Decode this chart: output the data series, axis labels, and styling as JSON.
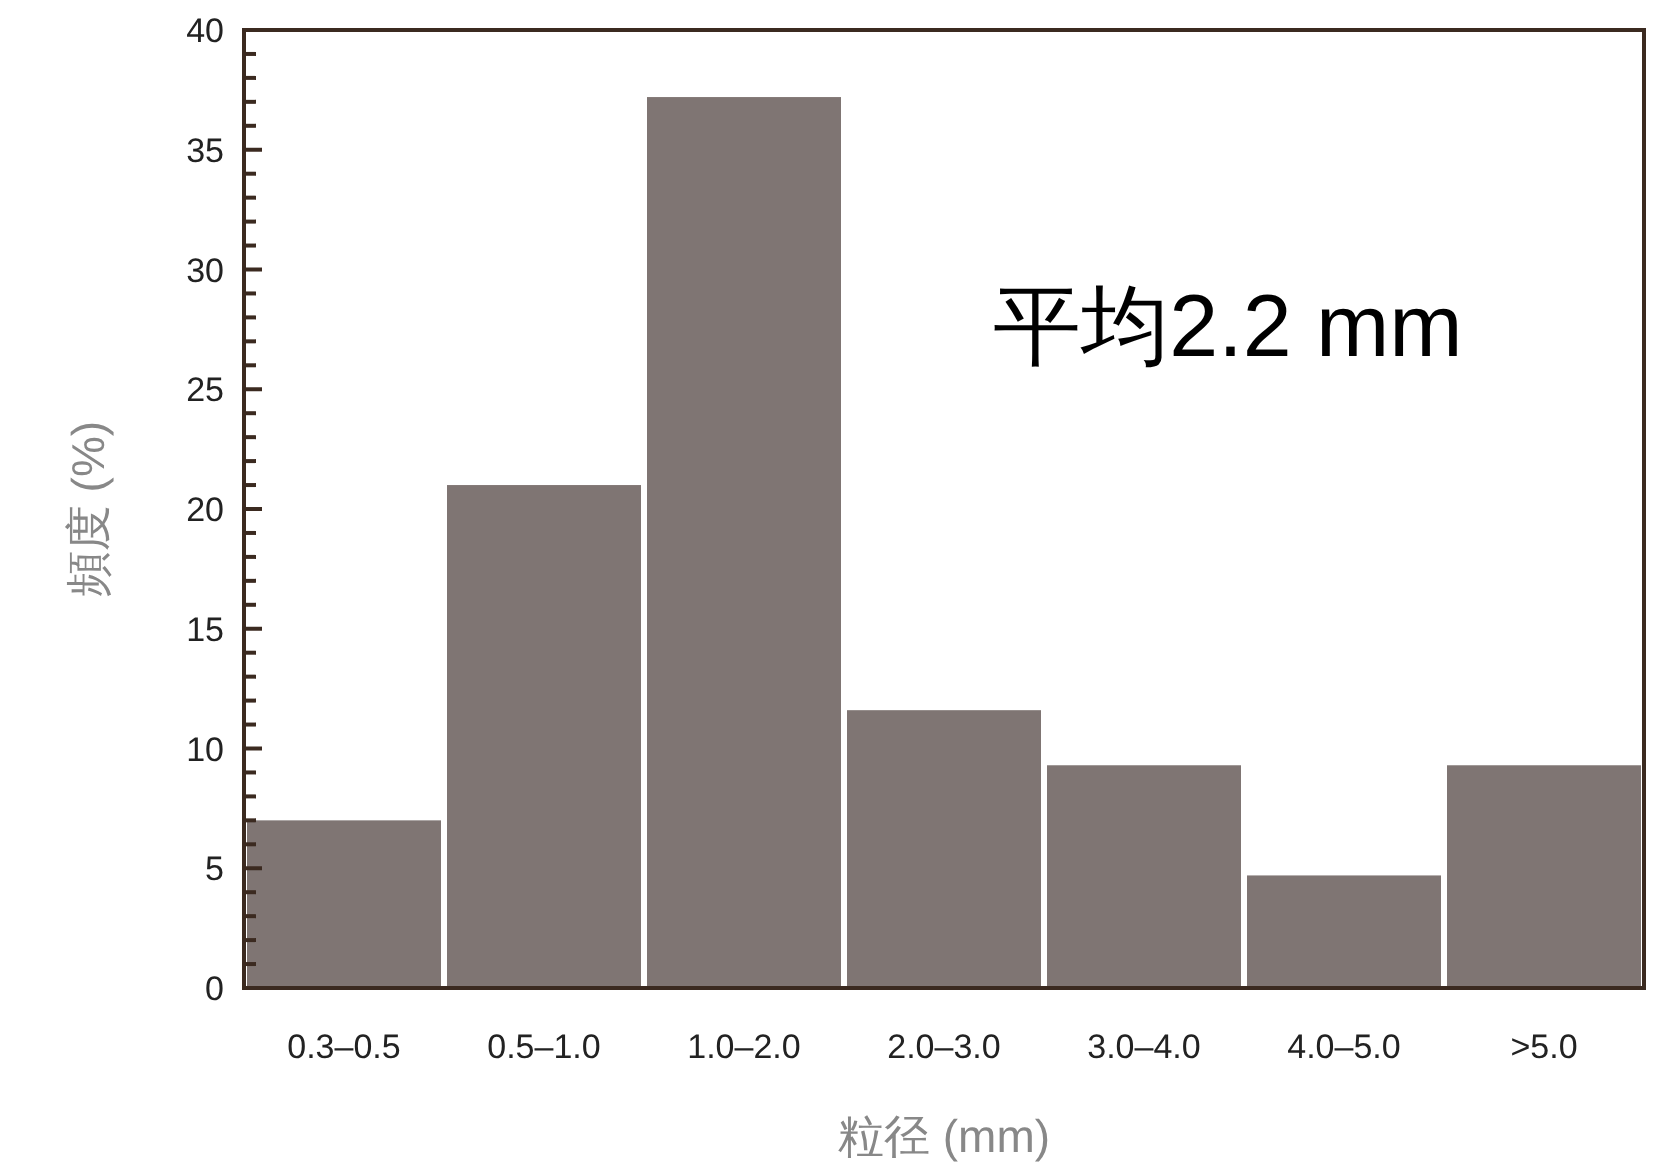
{
  "chart_data": {
    "type": "bar",
    "categories": [
      "0.3–0.5",
      "0.5–1.0",
      "1.0–2.0",
      "2.0–3.0",
      "3.0–4.0",
      "4.0–5.0",
      ">5.0"
    ],
    "values": [
      7,
      21,
      37.2,
      11.6,
      9.3,
      4.7,
      9.3
    ],
    "color": "#7f7573",
    "xlabel": "粒径 (mm)",
    "ylabel": "頻度 (%)",
    "annotations": [
      "平均2.2 mm"
    ],
    "ylim": [
      0,
      40
    ],
    "yticks": [
      0,
      {
        "value": 1,
        "label": null
      },
      {
        "value": 2,
        "label": null
      },
      {
        "value": 3,
        "label": null
      },
      {
        "value": 4,
        "label": null
      },
      5,
      {
        "value": 6,
        "label": null
      },
      {
        "value": 7,
        "label": null
      },
      {
        "value": 8,
        "label": null
      },
      {
        "value": 9,
        "label": null
      },
      10,
      {
        "value": 11,
        "label": null
      },
      {
        "value": 12,
        "label": null
      },
      {
        "value": 13,
        "label": null
      },
      {
        "value": 14,
        "label": null
      },
      15,
      {
        "value": 16,
        "label": null
      },
      {
        "value": 17,
        "label": null
      },
      {
        "value": 18,
        "label": null
      },
      {
        "value": 19,
        "label": null
      },
      20,
      {
        "value": 21,
        "label": null
      },
      {
        "value": 22,
        "label": null
      },
      {
        "value": 23,
        "label": null
      },
      {
        "value": 24,
        "label": null
      },
      25,
      {
        "value": 26,
        "label": null
      },
      {
        "value": 27,
        "label": null
      },
      {
        "value": 28,
        "label": null
      },
      {
        "value": 29,
        "label": null
      },
      30,
      {
        "value": 31,
        "label": null
      },
      {
        "value": 32,
        "label": null
      },
      {
        "value": 33,
        "label": null
      },
      {
        "value": 34,
        "label": null
      },
      35,
      {
        "value": 36,
        "label": null
      },
      {
        "value": 37,
        "label": null
      },
      {
        "value": 38,
        "label": null
      },
      {
        "value": 39,
        "label": null
      },
      40
    ],
    "grid": false
  }
}
